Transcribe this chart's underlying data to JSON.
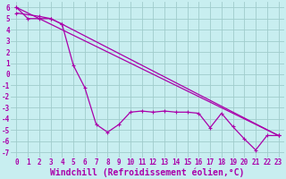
{
  "background_color": "#c8eef0",
  "grid_color": "#a0cccc",
  "line_color": "#aa00aa",
  "xlabel": "Windchill (Refroidissement éolien,°C)",
  "xlim": [
    -0.5,
    23.5
  ],
  "ylim": [
    -7.5,
    6.5
  ],
  "xticks": [
    0,
    1,
    2,
    3,
    4,
    5,
    6,
    7,
    8,
    9,
    10,
    11,
    12,
    13,
    14,
    15,
    16,
    17,
    18,
    19,
    20,
    21,
    22,
    23
  ],
  "yticks": [
    -7,
    -6,
    -5,
    -4,
    -3,
    -2,
    -1,
    0,
    1,
    2,
    3,
    4,
    5,
    6
  ],
  "line1_x": [
    0,
    1,
    2,
    3,
    4,
    5,
    6,
    7,
    8,
    9,
    10,
    11,
    12,
    13,
    14,
    15,
    16,
    17,
    18,
    19,
    20,
    21,
    22,
    23
  ],
  "line1_y": [
    6.0,
    5.0,
    5.0,
    5.0,
    4.5,
    0.8,
    -1.2,
    -4.5,
    -5.2,
    -4.5,
    -3.4,
    -3.3,
    -3.4,
    -3.3,
    -3.4,
    -3.4,
    -3.5,
    -4.8,
    -3.5,
    -4.7,
    -5.8,
    -6.8,
    -5.5,
    -5.5
  ],
  "line2_x": [
    0,
    23
  ],
  "line2_y": [
    6.0,
    -5.5
  ],
  "line3_x": [
    0,
    2,
    3,
    4,
    23
  ],
  "line3_y": [
    5.5,
    5.2,
    5.0,
    4.5,
    -5.5
  ],
  "tick_fontsize": 5.5,
  "xlabel_fontsize": 7.0
}
